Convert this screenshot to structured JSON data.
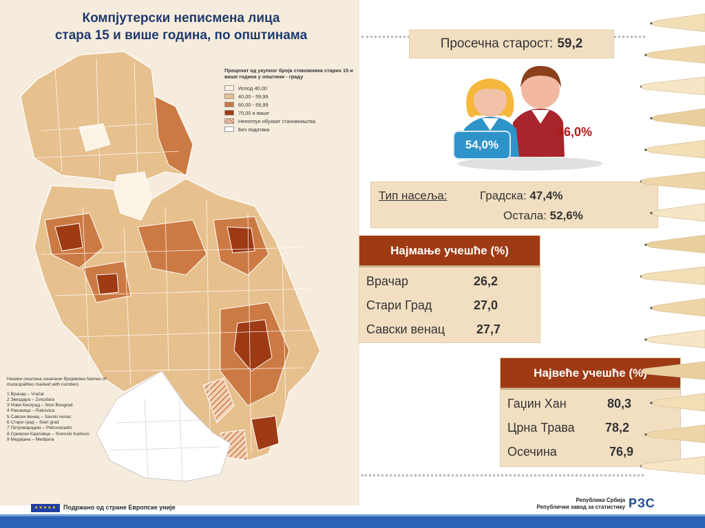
{
  "title": {
    "line1": "Компјутерски неписмена лица",
    "line2": "стара 15 и више година, по општинама"
  },
  "legend": {
    "title": "Проценат од укупног броја становника старих 15 и више година у општини - граду",
    "items": [
      {
        "label": "Испод 40,00",
        "color": "#fbf3e4"
      },
      {
        "label": "40,00 - 59,99",
        "color": "#e6c08d"
      },
      {
        "label": "60,00 - 69,99",
        "color": "#cc7a44"
      },
      {
        "label": "70,00 и више",
        "color": "#9e3a14"
      },
      {
        "label": "Непотпун обухват становништва",
        "color": "hatch"
      },
      {
        "label": "Без података",
        "color": "#ffffff"
      }
    ]
  },
  "municipality_names": {
    "heading": "Називи општина означени бројевима Names of municipalities marked with numbers",
    "items": [
      "1 Врачар – Vračar",
      "2 Звездара – Zvezdara",
      "3 Нови Београд – Novi Beograd",
      "4 Раковица – Rakovica",
      "5 Савски венац – Savski venac",
      "6 Стари град – Stari grad",
      "7 Петроварадин – Petrovaradin",
      "8 Сремски Карловци – Sremski Karlovci",
      "9 Медијана – Medijana"
    ]
  },
  "average_age": {
    "label": "Просечна старост:",
    "value": "59,2"
  },
  "gender": {
    "female_pct": "54,0%",
    "male_pct": "46,0%",
    "female_color": "#2e93c9",
    "male_color": "#a8252b"
  },
  "settlement": {
    "label": "Тип насеља:",
    "urban_label": "Градска:",
    "urban_value": "47,4%",
    "other_label": "Остала:",
    "other_value": "52,6%"
  },
  "lowest": {
    "header": "Најмање учешће (%)",
    "rows": [
      {
        "name": "Врачар",
        "value": "26,2"
      },
      {
        "name": "Стари Град",
        "value": "27,0"
      },
      {
        "name": "Савски венац",
        "value": "27,7"
      }
    ]
  },
  "highest": {
    "header": "Највеће учешће (%)",
    "rows": [
      {
        "name": "Гаџин Хан",
        "value": "80,3"
      },
      {
        "name": "Црна Трава",
        "value": "78,2"
      },
      {
        "name": "Осечина",
        "value": "76,9"
      }
    ]
  },
  "footer": {
    "eu_text": "Подржано од стране Европске уније",
    "institution_line1": "Република Србија",
    "institution_line2": "Републички завод за статистику",
    "logo": "РЗС"
  },
  "colors": {
    "title": "#1f3a6e",
    "table_header": "#9e3a14",
    "panel_bg": "#f2dfc2",
    "map_bg": "#f6ecdd"
  }
}
